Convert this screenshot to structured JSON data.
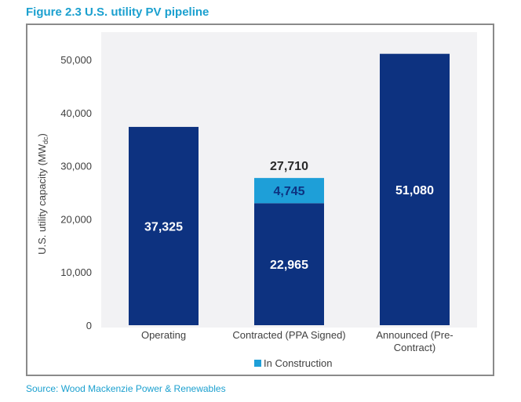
{
  "figure_title": "Figure 2.3 U.S. utility PV pipeline",
  "source": "Source: Wood Mackenzie Power & Renewables",
  "colors": {
    "title": "#1ba0cf",
    "main_series": "#0d3280",
    "in_construction": "#1e9fd8",
    "plot_bg": "#f2f2f4",
    "frame": "#8a8a8a"
  },
  "chart_data": {
    "type": "bar",
    "stacked": true,
    "title": "Figure 2.3 U.S. utility PV pipeline",
    "xlabel": "",
    "ylabel": "U.S. utility capacity (MWdc)",
    "ylabel_main": "U.S. utility capacity (MW",
    "ylabel_sub": "dc",
    "ylabel_end": ")",
    "ylim": [
      0,
      50000
    ],
    "yticks": [
      0,
      10000,
      20000,
      30000,
      40000,
      50000
    ],
    "ytick_labels": [
      "0",
      "10,000",
      "20,000",
      "30,000",
      "40,000",
      "50,000"
    ],
    "grid": false,
    "categories": [
      "Operating",
      "Contracted (PPA Signed)",
      "Announced (Pre-Contract)"
    ],
    "category_lines": [
      [
        "Operating"
      ],
      [
        "Contracted (PPA Signed)"
      ],
      [
        "Announced (Pre-",
        "Contract)"
      ]
    ],
    "series": [
      {
        "name": "Pipeline",
        "values": [
          37325,
          22965,
          51080
        ],
        "labels": [
          "37,325",
          "22,965",
          "51,080"
        ],
        "show_in_legend": false
      },
      {
        "name": "In Construction",
        "values": [
          0,
          4745,
          0
        ],
        "labels": [
          "",
          "4,745",
          ""
        ],
        "show_in_legend": true
      }
    ],
    "totals": [
      null,
      27710,
      null
    ],
    "total_labels": [
      "",
      "27,710",
      ""
    ],
    "legend": {
      "entries": [
        "In Construction"
      ],
      "placement": "bottom"
    }
  }
}
